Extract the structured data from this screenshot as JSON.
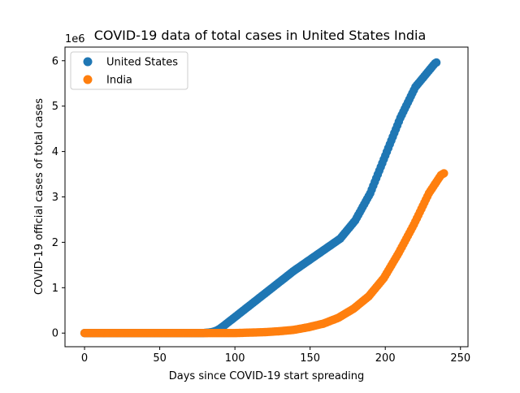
{
  "chart_data": {
    "type": "scatter",
    "title": "COVID-19 data of total cases in United States India",
    "xlabel": "Days since COVID-19 start spreading",
    "ylabel": "COVID-19 official cases of total cases",
    "y_offset_text": "1e6",
    "xlim": [
      -13,
      255
    ],
    "ylim": [
      -0.3,
      6.3
    ],
    "xticks": [
      0,
      50,
      100,
      150,
      200,
      250
    ],
    "xtick_labels": [
      "0",
      "50",
      "100",
      "150",
      "200",
      "250"
    ],
    "yticks": [
      0,
      1,
      2,
      3,
      4,
      5,
      6
    ],
    "ytick_labels": [
      "0",
      "1",
      "2",
      "3",
      "4",
      "5",
      "6"
    ],
    "grid": false,
    "legend_position": "top-left",
    "x_start": 0,
    "x_step": 1,
    "series": [
      {
        "name": "United States",
        "color": "#1f77b4",
        "values": [
          0,
          0,
          0,
          0,
          0,
          0,
          0,
          0,
          0,
          0,
          0,
          0,
          0,
          0,
          0,
          0,
          0,
          0,
          0,
          0,
          0,
          0,
          0,
          0,
          0,
          0,
          0,
          0,
          0,
          0,
          0,
          0,
          0,
          0,
          0,
          0,
          0,
          0,
          0,
          0,
          0,
          0,
          0,
          0,
          0,
          0,
          0,
          0,
          0,
          0,
          0,
          0,
          0,
          0,
          0,
          0,
          0,
          0,
          0,
          0,
          0,
          0,
          0,
          0,
          0,
          0,
          0,
          0,
          0,
          0,
          0,
          0,
          0,
          0,
          0,
          0,
          0,
          0,
          0,
          0,
          0.004,
          0.007,
          0.01,
          0.014,
          0.019,
          0.026,
          0.034,
          0.045,
          0.059,
          0.076,
          0.097,
          0.121,
          0.146,
          0.171,
          0.197,
          0.223,
          0.249,
          0.275,
          0.301,
          0.327,
          0.353,
          0.379,
          0.405,
          0.431,
          0.457,
          0.483,
          0.509,
          0.535,
          0.561,
          0.587,
          0.613,
          0.639,
          0.665,
          0.691,
          0.717,
          0.743,
          0.769,
          0.795,
          0.821,
          0.847,
          0.873,
          0.899,
          0.925,
          0.951,
          0.977,
          1.003,
          1.029,
          1.055,
          1.081,
          1.107,
          1.133,
          1.159,
          1.185,
          1.211,
          1.237,
          1.263,
          1.289,
          1.315,
          1.341,
          1.367,
          1.39,
          1.413,
          1.436,
          1.459,
          1.482,
          1.505,
          1.528,
          1.551,
          1.574,
          1.597,
          1.62,
          1.643,
          1.666,
          1.689,
          1.712,
          1.735,
          1.758,
          1.781,
          1.804,
          1.827,
          1.85,
          1.873,
          1.896,
          1.919,
          1.942,
          1.965,
          1.988,
          2.011,
          2.034,
          2.057,
          2.08,
          2.12,
          2.16,
          2.2,
          2.24,
          2.28,
          2.32,
          2.36,
          2.4,
          2.44,
          2.48,
          2.54,
          2.6,
          2.66,
          2.72,
          2.78,
          2.84,
          2.9,
          2.96,
          3.02,
          3.08,
          3.163,
          3.246,
          3.329,
          3.412,
          3.495,
          3.578,
          3.661,
          3.744,
          3.827,
          3.91,
          3.993,
          4.076,
          4.159,
          4.242,
          4.325,
          4.408,
          4.491,
          4.574,
          4.657,
          4.74,
          4.808,
          4.876,
          4.944,
          5.012,
          5.08,
          5.148,
          5.216,
          5.284,
          5.352,
          5.42,
          5.46,
          5.5,
          5.54,
          5.58,
          5.62,
          5.66,
          5.7,
          5.74,
          5.78,
          5.82,
          5.86,
          5.9,
          5.94,
          5.96
        ]
      },
      {
        "name": "India",
        "color": "#ff7f0e",
        "values": [
          0,
          0,
          0,
          0,
          0,
          0,
          0,
          0,
          0,
          0,
          0,
          0,
          0,
          0,
          0,
          0,
          0,
          0,
          0,
          0,
          0,
          0,
          0,
          0,
          0,
          0,
          0,
          0,
          0,
          0,
          0,
          0,
          0,
          0,
          0,
          0,
          0,
          0,
          0,
          0,
          0,
          0,
          0,
          0,
          0,
          0,
          0,
          0,
          0,
          0,
          0,
          0,
          0,
          0,
          0,
          0,
          0,
          0,
          0,
          0,
          0,
          0,
          0,
          0,
          0,
          0,
          0,
          0,
          0,
          0,
          0,
          0,
          0,
          0,
          0,
          0,
          0,
          0,
          0,
          0,
          0,
          0,
          0,
          0,
          0,
          0,
          0,
          0,
          0,
          0,
          0,
          0,
          0,
          0,
          0,
          0,
          0,
          0,
          0,
          0,
          0.001,
          0.002,
          0.003,
          0.004,
          0.005,
          0.006,
          0.007,
          0.008,
          0.009,
          0.01,
          0.011,
          0.012,
          0.013,
          0.014,
          0.015,
          0.016,
          0.017,
          0.018,
          0.019,
          0.02,
          0.022,
          0.024,
          0.026,
          0.028,
          0.03,
          0.032,
          0.034,
          0.036,
          0.038,
          0.04,
          0.043,
          0.046,
          0.049,
          0.052,
          0.055,
          0.058,
          0.061,
          0.064,
          0.067,
          0.07,
          0.076,
          0.082,
          0.088,
          0.094,
          0.1,
          0.106,
          0.112,
          0.118,
          0.124,
          0.13,
          0.138,
          0.146,
          0.154,
          0.162,
          0.17,
          0.178,
          0.186,
          0.194,
          0.202,
          0.21,
          0.223,
          0.236,
          0.249,
          0.262,
          0.275,
          0.288,
          0.301,
          0.314,
          0.327,
          0.34,
          0.36,
          0.38,
          0.4,
          0.42,
          0.44,
          0.46,
          0.48,
          0.5,
          0.52,
          0.54,
          0.567,
          0.594,
          0.621,
          0.648,
          0.675,
          0.702,
          0.729,
          0.756,
          0.783,
          0.81,
          0.85,
          0.89,
          0.93,
          0.97,
          1.01,
          1.05,
          1.09,
          1.13,
          1.17,
          1.21,
          1.266,
          1.322,
          1.378,
          1.434,
          1.49,
          1.546,
          1.602,
          1.658,
          1.714,
          1.77,
          1.832,
          1.894,
          1.956,
          2.018,
          2.08,
          2.142,
          2.204,
          2.266,
          2.328,
          2.39,
          2.459,
          2.528,
          2.597,
          2.666,
          2.735,
          2.804,
          2.873,
          2.942,
          3.011,
          3.08,
          3.13,
          3.18,
          3.23,
          3.28,
          3.33,
          3.38,
          3.43,
          3.48,
          3.5,
          3.52
        ]
      }
    ]
  }
}
